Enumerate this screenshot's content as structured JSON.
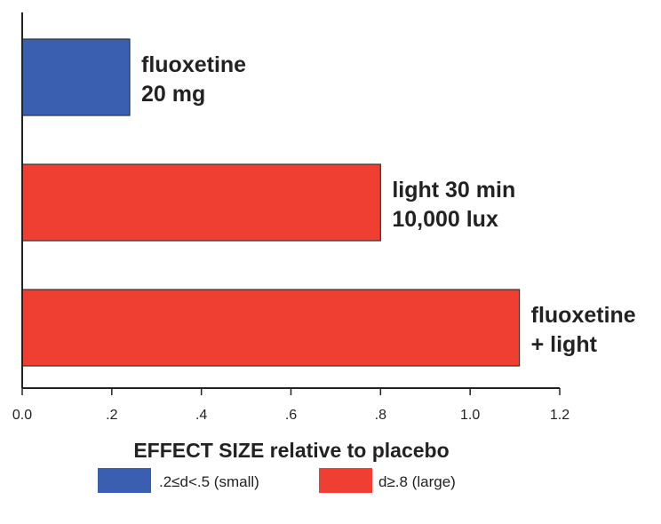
{
  "chart_data": {
    "type": "bar",
    "orientation": "horizontal",
    "title": "",
    "xlabel": "EFFECT SIZE relative to placebo",
    "ylabel": "",
    "xlim": [
      0,
      1.2
    ],
    "x_ticks": [
      "0.0",
      ".2",
      ".4",
      ".6",
      ".8",
      "1.0",
      "1.2"
    ],
    "categories": [
      {
        "lines": [
          "fluoxetine",
          "20 mg"
        ],
        "value": 0.24,
        "class": "small"
      },
      {
        "lines": [
          "light 30 min",
          "10,000 lux"
        ],
        "value": 0.8,
        "class": "large"
      },
      {
        "lines": [
          "fluoxetine",
          "+ light"
        ],
        "value": 1.11,
        "class": "large"
      }
    ],
    "legend": {
      "placement": "bottom",
      "entries": [
        {
          "label": ".2≤d<.5 (small)",
          "class": "small",
          "color": "#3a5fb0"
        },
        {
          "label": "d≥.8 (large)",
          "class": "large",
          "color": "#ef3e32"
        }
      ]
    },
    "grid": false
  }
}
